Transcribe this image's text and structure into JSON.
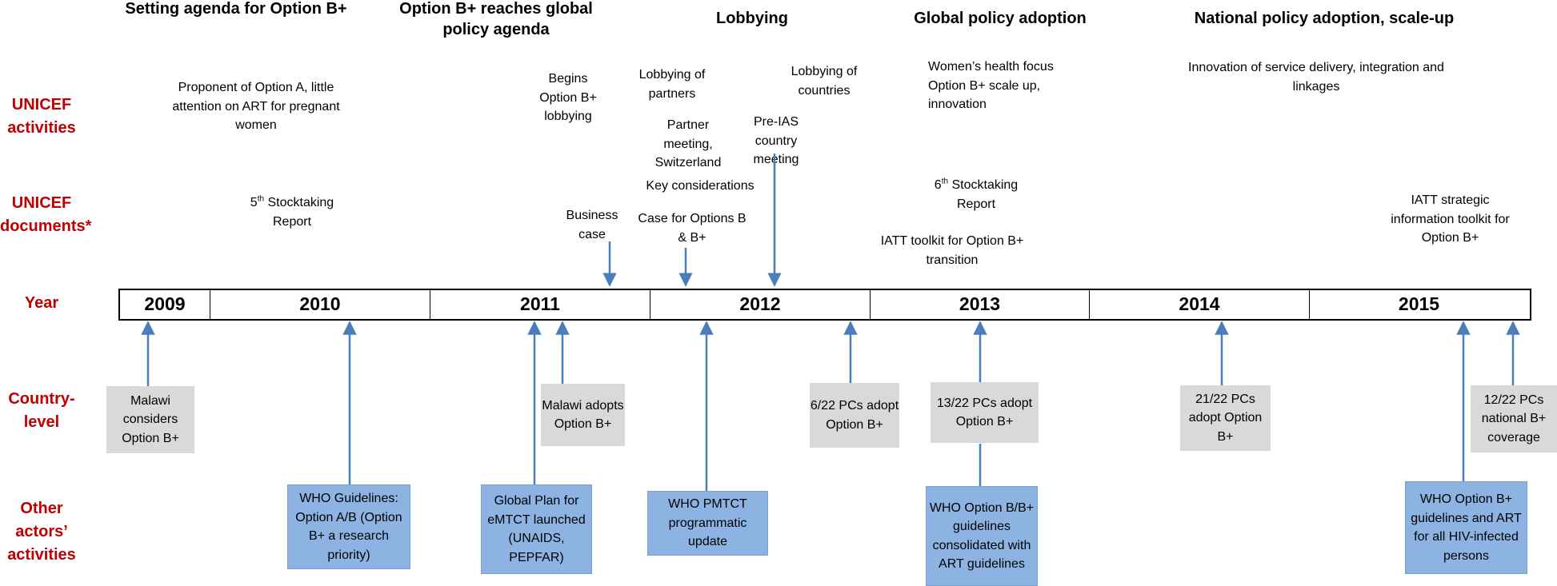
{
  "phases": [
    "Setting agenda for Option B+",
    "Option B+ reaches global policy agenda",
    "Lobbying",
    "Global  policy adoption",
    "National policy adoption, scale-up"
  ],
  "row_labels": {
    "unicef_activities": "UNICEF activities",
    "unicef_documents": "UNICEF documents*",
    "year": "Year",
    "country_level": "Country-level",
    "other_actors": "Other actors’ activities"
  },
  "years": [
    "2009",
    "2010",
    "2011",
    "2012",
    "2013",
    "2014",
    "2015"
  ],
  "unicef_activities": {
    "proponent": "Proponent of Option A, little attention on ART for pregnant women",
    "begins_lobbying": "Begins Option B+ lobbying",
    "lobbying_partners": "Lobbying of partners",
    "lobbying_countries": "Lobbying of countries",
    "partner_meeting": "Partner meeting, Switzerland",
    "pre_ias": "Pre-IAS country meeting",
    "womens_health": "Women’s health focus Option B+ scale up, innovation",
    "innovation": "Innovation of service delivery, integration and linkages"
  },
  "unicef_documents": {
    "stocktaking5_num": "5",
    "stocktaking5_sup": "th",
    "stocktaking5_rest": " Stocktaking Report",
    "business_case": "Business case",
    "key_considerations": "Key considerations",
    "case_for_options": "Case for Options B & B+",
    "stocktaking6_num": "6",
    "stocktaking6_sup": "th",
    "stocktaking6_rest": " Stocktaking Report",
    "iatt_toolkit": "IATT toolkit for Option B+ transition",
    "iatt_strategic": "IATT strategic information toolkit for Option B+"
  },
  "country_level": {
    "malawi_considers": "Malawi considers Option B+",
    "malawi_adopts": "Malawi adopts Option B+",
    "pcs_6": "6/22 PCs adopt Option B+",
    "pcs_13": "13/22 PCs adopt Option B+",
    "pcs_21": "21/22 PCs adopt Option B+",
    "pcs_12": "12/22 PCs national B+ coverage"
  },
  "other_actors": {
    "who_guidelines": "WHO Guidelines: Option A/B (Option B+ a research priority)",
    "global_plan": "Global Plan for eMTCT launched (UNAIDS, PEPFAR)",
    "who_pmtct": "WHO PMTCT programmatic update",
    "who_option_b": "WHO Option B/B+ guidelines consolidated with ART guidelines",
    "who_option_b_plus": "WHO Option B+ guidelines and ART for all HIV-infected persons"
  },
  "colors": {
    "label_red": "#c00000",
    "arrow_blue": "#4a7ebb",
    "grey_box": "#d9d9d9",
    "blue_box": "#8db3e2"
  }
}
